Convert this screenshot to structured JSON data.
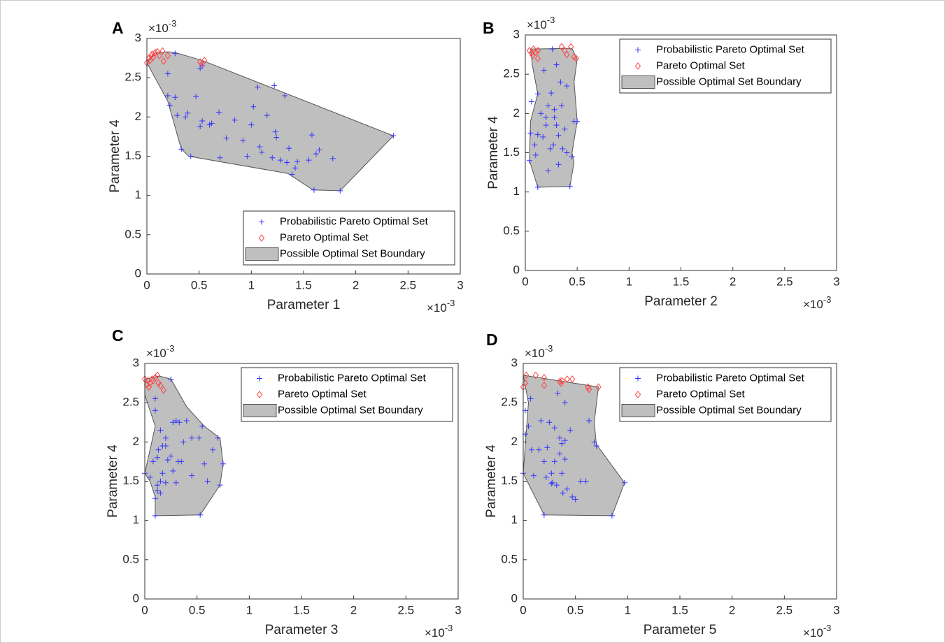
{
  "chart_data": [
    {
      "type": "scatter",
      "panel_label": "A",
      "xlabel": "Parameter 1",
      "ylabel": "Parameter 4",
      "x_multiplier": {
        "base": "×10",
        "exponent": "-3"
      },
      "y_multiplier": {
        "base": "×10",
        "exponent": "-3"
      },
      "xlim": [
        0,
        3
      ],
      "ylim": [
        0,
        3
      ],
      "xticks": [
        0,
        0.5,
        1,
        1.5,
        2,
        2.5,
        3
      ],
      "yticks": [
        0,
        0.5,
        1,
        1.5,
        2,
        2.5,
        3
      ],
      "legend": "lower right",
      "series": [
        {
          "name": "Probabilistic Pareto Optimal Set",
          "style": "plus",
          "color": "#3333ff",
          "x": [
            0.27,
            0.2,
            0.2,
            0.22,
            0.27,
            0.29,
            0.37,
            0.39,
            0.47,
            0.51,
            0.53,
            0.6,
            0.62,
            0.69,
            0.76,
            0.84,
            0.92,
            0.96,
            1.0,
            1.02,
            1.06,
            1.08,
            1.1,
            1.15,
            1.2,
            1.22,
            1.23,
            1.24,
            1.28,
            1.32,
            1.34,
            1.36,
            1.39,
            1.42,
            1.44,
            1.55,
            1.58,
            1.6,
            1.62,
            1.65,
            1.78,
            1.85,
            2.36,
            0.33,
            0.42,
            0.7,
            0.51,
            0.53
          ],
          "y": [
            2.81,
            2.55,
            2.27,
            2.15,
            2.25,
            2.02,
            2.0,
            2.05,
            2.26,
            1.88,
            1.95,
            1.9,
            1.92,
            2.06,
            1.73,
            1.96,
            1.7,
            1.5,
            1.9,
            2.13,
            2.38,
            1.62,
            1.55,
            2.02,
            1.48,
            2.4,
            1.81,
            1.74,
            1.45,
            2.27,
            1.42,
            1.6,
            1.27,
            1.35,
            1.43,
            1.45,
            1.77,
            1.07,
            1.53,
            1.58,
            1.47,
            1.06,
            1.76,
            1.59,
            1.5,
            1.48,
            2.62,
            2.65
          ]
        },
        {
          "name": "Pareto Optimal Set",
          "style": "diamond",
          "color": "#ff4444",
          "x": [
            0,
            0.02,
            0.04,
            0.05,
            0.06,
            0.08,
            0.1,
            0.12,
            0.15,
            0.16,
            0.2,
            0.51,
            0.53,
            0.55,
            0.03
          ],
          "y": [
            2.69,
            2.75,
            2.78,
            2.8,
            2.76,
            2.82,
            2.83,
            2.78,
            2.84,
            2.71,
            2.78,
            2.7,
            2.68,
            2.72,
            2.72
          ]
        },
        {
          "name": "Possible Optimal Set Boundary",
          "style": "patch",
          "color": "#bfbfbf",
          "x": [
            0,
            0.08,
            0.2,
            0.27,
            0.53,
            2.36,
            1.85,
            1.59,
            1.35,
            0.4,
            0.33,
            0.2
          ],
          "y": [
            2.69,
            2.82,
            2.83,
            2.82,
            2.72,
            1.76,
            1.06,
            1.07,
            1.28,
            1.5,
            1.59,
            2.2
          ]
        }
      ]
    },
    {
      "type": "scatter",
      "panel_label": "B",
      "xlabel": "Parameter 2",
      "ylabel": "Parameter 4",
      "x_multiplier": {
        "base": "×10",
        "exponent": "-3"
      },
      "y_multiplier": {
        "base": "×10",
        "exponent": "-3"
      },
      "xlim": [
        0,
        3
      ],
      "ylim": [
        0,
        3
      ],
      "xticks": [
        0,
        0.5,
        1,
        1.5,
        2,
        2.5,
        3
      ],
      "yticks": [
        0,
        0.5,
        1,
        1.5,
        2,
        2.5,
        3
      ],
      "legend": "upper right",
      "series": [
        {
          "name": "Probabilistic Pareto Optimal Set",
          "style": "plus",
          "color": "#3333ff",
          "x": [
            0.12,
            0.43,
            0.04,
            0.1,
            0.12,
            0.17,
            0.2,
            0.22,
            0.24,
            0.25,
            0.27,
            0.28,
            0.3,
            0.3,
            0.32,
            0.32,
            0.34,
            0.36,
            0.38,
            0.4,
            0.4,
            0.45,
            0.47,
            0.5,
            0.12,
            0.18,
            0.22,
            0.26,
            0.15,
            0.09,
            0.05,
            0.35,
            0.28,
            0.2,
            0.06
          ],
          "y": [
            1.06,
            1.07,
            1.4,
            1.47,
            1.73,
            1.7,
            1.95,
            1.27,
            1.55,
            2.26,
            1.6,
            2.05,
            1.85,
            2.62,
            1.72,
            1.35,
            2.4,
            1.55,
            1.8,
            2.35,
            1.5,
            1.45,
            1.9,
            1.9,
            2.25,
            2.55,
            2.1,
            2.82,
            2.0,
            1.6,
            1.75,
            2.1,
            1.95,
            1.85,
            2.15
          ]
        },
        {
          "name": "Pareto Optimal Set",
          "style": "diamond",
          "color": "#ff4444",
          "x": [
            0.04,
            0.06,
            0.07,
            0.1,
            0.12,
            0.12,
            0.35,
            0.38,
            0.4,
            0.44,
            0.47,
            0.49,
            0.08
          ],
          "y": [
            2.8,
            2.77,
            2.74,
            2.78,
            2.7,
            2.8,
            2.85,
            2.8,
            2.75,
            2.85,
            2.72,
            2.7,
            2.82
          ]
        },
        {
          "name": "Possible Optimal Set Boundary",
          "style": "patch",
          "color": "#bfbfbf",
          "x": [
            0.05,
            0.45,
            0.5,
            0.47,
            0.5,
            0.45,
            0.47,
            0.43,
            0.12,
            0.04,
            0.05,
            0.12,
            0.07
          ],
          "y": [
            2.82,
            2.83,
            2.69,
            2.4,
            1.9,
            1.5,
            1.38,
            1.07,
            1.06,
            1.4,
            1.9,
            2.25,
            2.6
          ]
        }
      ]
    },
    {
      "type": "scatter",
      "panel_label": "C",
      "xlabel": "Parameter 3",
      "ylabel": "Parameter 4",
      "x_multiplier": {
        "base": "×10",
        "exponent": "-3"
      },
      "y_multiplier": {
        "base": "×10",
        "exponent": "-3"
      },
      "xlim": [
        0,
        3
      ],
      "ylim": [
        0,
        3
      ],
      "xticks": [
        0,
        0.5,
        1,
        1.5,
        2,
        2.5,
        3
      ],
      "yticks": [
        0,
        0.5,
        1,
        1.5,
        2,
        2.5,
        3
      ],
      "legend": "upper right",
      "series": [
        {
          "name": "Probabilistic Pareto Optimal Set",
          "style": "plus",
          "color": "#3333ff",
          "x": [
            0.25,
            0.1,
            0.1,
            0.15,
            0.17,
            0.13,
            0.2,
            0.27,
            0.3,
            0.33,
            0.4,
            0.37,
            0.35,
            0.45,
            0.52,
            0.55,
            0.57,
            0.6,
            0.65,
            0.7,
            0.75,
            0.72,
            0.53,
            0.1,
            0.1,
            0.12,
            0.15,
            0.17,
            0.2,
            0.22,
            0.3,
            0.32,
            0.27,
            0.45,
            0,
            0.05,
            0.08,
            0.12,
            0.25,
            0.12,
            0.15,
            0.2
          ],
          "y": [
            2.8,
            2.55,
            2.4,
            2.15,
            1.95,
            1.9,
            2.05,
            2.25,
            2.27,
            2.25,
            2.27,
            2.0,
            1.75,
            2.05,
            2.05,
            2.2,
            1.72,
            1.5,
            1.9,
            2.05,
            1.72,
            1.45,
            1.07,
            1.06,
            1.28,
            1.45,
            1.5,
            1.6,
            1.48,
            1.77,
            1.48,
            1.75,
            1.63,
            1.57,
            1.6,
            1.55,
            1.75,
            1.8,
            1.82,
            1.38,
            1.35,
            1.95
          ]
        },
        {
          "name": "Pareto Optimal Set",
          "style": "diamond",
          "color": "#ff4444",
          "x": [
            0,
            0.02,
            0.03,
            0.05,
            0.07,
            0.08,
            0.1,
            0.12,
            0.13,
            0.15,
            0.18,
            0.04
          ],
          "y": [
            2.8,
            2.73,
            2.78,
            2.75,
            2.8,
            2.78,
            2.82,
            2.85,
            2.75,
            2.72,
            2.66,
            2.7
          ]
        },
        {
          "name": "Possible Optimal Set Boundary",
          "style": "patch",
          "color": "#bfbfbf",
          "x": [
            0,
            0.14,
            0.25,
            0.4,
            0.57,
            0.72,
            0.75,
            0.72,
            0.53,
            0.1,
            0.1,
            0.05,
            0,
            0.1,
            0.05,
            0
          ],
          "y": [
            2.8,
            2.84,
            2.8,
            2.45,
            2.2,
            2.05,
            1.72,
            1.45,
            1.07,
            1.06,
            1.3,
            1.5,
            1.6,
            2.2,
            2.4,
            2.6
          ]
        }
      ]
    },
    {
      "type": "scatter",
      "panel_label": "D",
      "xlabel": "Parameter 5",
      "ylabel": "Parameter 4",
      "x_multiplier": {
        "base": "×10",
        "exponent": "-3"
      },
      "y_multiplier": {
        "base": "×10",
        "exponent": "-3"
      },
      "xlim": [
        0,
        3
      ],
      "ylim": [
        0,
        3
      ],
      "xticks": [
        0,
        0.5,
        1,
        1.5,
        2,
        2.5,
        3
      ],
      "yticks": [
        0,
        0.5,
        1,
        1.5,
        2,
        2.5,
        3
      ],
      "legend": "upper right",
      "series": [
        {
          "name": "Probabilistic Pareto Optimal Set",
          "style": "plus",
          "color": "#3333ff",
          "x": [
            0.02,
            0.05,
            0.07,
            0.1,
            0.15,
            0.17,
            0.2,
            0.2,
            0.22,
            0.23,
            0.25,
            0.27,
            0.28,
            0.3,
            0.32,
            0.33,
            0.35,
            0.37,
            0.37,
            0.38,
            0.4,
            0.4,
            0.42,
            0.45,
            0.47,
            0.5,
            0.55,
            0.6,
            0.63,
            0.68,
            0.7,
            0.97,
            0.85,
            0,
            0.02,
            0.27,
            0.35,
            0.4,
            0.08,
            0.3
          ],
          "y": [
            2.4,
            2.2,
            2.55,
            1.57,
            1.9,
            2.27,
            1.07,
            1.75,
            1.55,
            1.93,
            2.25,
            1.6,
            1.48,
            1.75,
            1.45,
            2.62,
            2.05,
            1.98,
            1.6,
            1.35,
            1.78,
            2.02,
            1.4,
            2.15,
            1.3,
            1.27,
            1.5,
            1.5,
            2.27,
            2.0,
            1.95,
            1.48,
            1.06,
            1.6,
            2.1,
            1.47,
            1.85,
            2.5,
            1.9,
            2.18
          ]
        },
        {
          "name": "Pareto Optimal Set",
          "style": "diamond",
          "color": "#ff4444",
          "x": [
            0,
            0.02,
            0.03,
            0.12,
            0.2,
            0.2,
            0.35,
            0.36,
            0.37,
            0.42,
            0.47,
            0.62,
            0.63,
            0.72
          ],
          "y": [
            2.7,
            2.75,
            2.85,
            2.85,
            2.82,
            2.72,
            2.77,
            2.75,
            2.78,
            2.8,
            2.8,
            2.7,
            2.67,
            2.7
          ]
        },
        {
          "name": "Possible Optimal Set Boundary",
          "style": "patch",
          "color": "#bfbfbf",
          "x": [
            0,
            0.72,
            0.68,
            0.7,
            0.97,
            0.85,
            0.2,
            0,
            0.05
          ],
          "y": [
            2.85,
            2.7,
            2.25,
            1.97,
            1.48,
            1.06,
            1.07,
            1.6,
            2.5
          ]
        }
      ]
    }
  ]
}
